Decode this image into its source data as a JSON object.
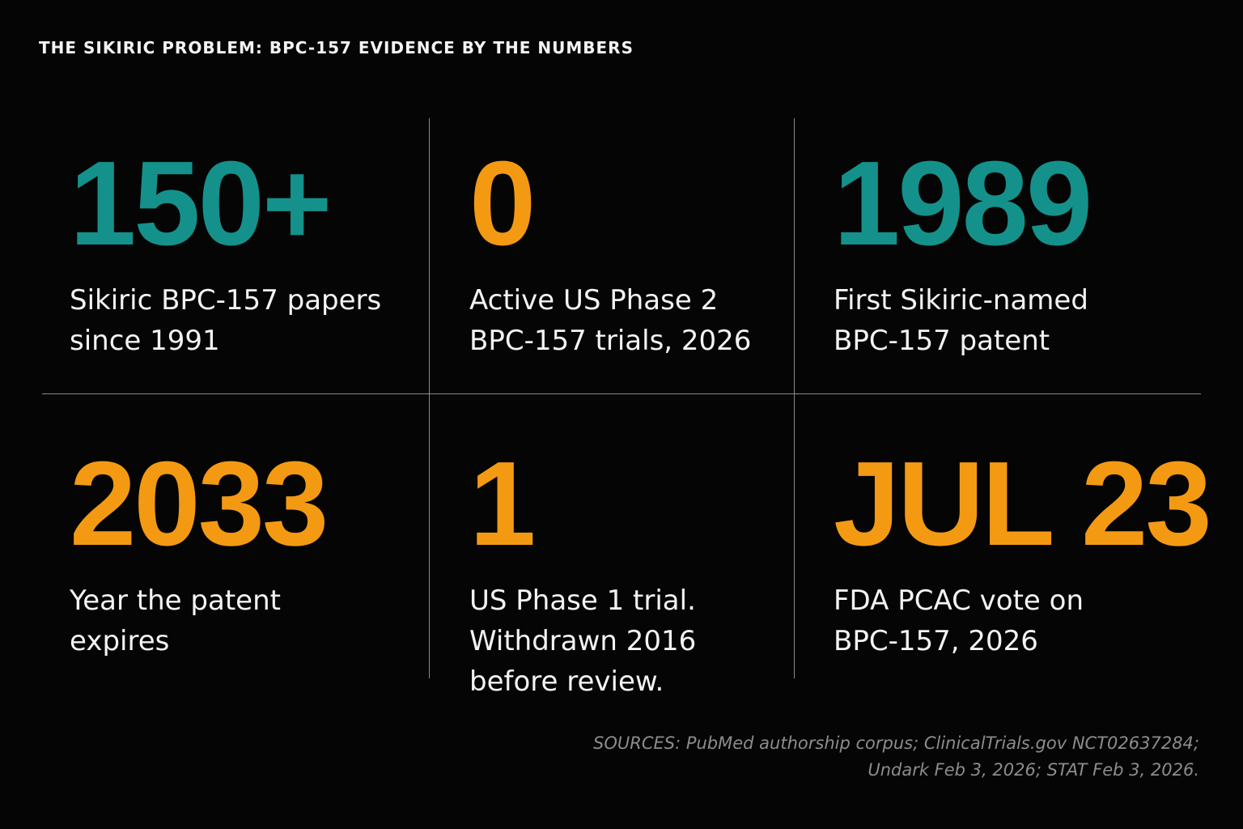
{
  "title": "THE SIKIRIC PROBLEM: BPC-157 EVIDENCE BY THE NUMBERS",
  "colors": {
    "background": "#050505",
    "teal": "#14918b",
    "orange": "#f39a12",
    "text": "#f3f3f3",
    "muted": "#8c8c8c"
  },
  "stats": [
    {
      "value": "150+",
      "color": "teal",
      "caption": "Sikiric BPC-157 papers\nsince 1991"
    },
    {
      "value": "0",
      "color": "orange",
      "caption": "Active US Phase 2\nBPC-157 trials, 2026"
    },
    {
      "value": "1989",
      "color": "teal",
      "caption": "First Sikiric-named\nBPC-157 patent"
    },
    {
      "value": "2033",
      "color": "orange",
      "caption": "Year the patent\nexpires"
    },
    {
      "value": "1",
      "color": "orange",
      "caption": "US Phase 1 trial.\nWithdrawn 2016\nbefore review."
    },
    {
      "value": "JUL 23",
      "color": "orange",
      "caption": "FDA PCAC vote on\nBPC-157, 2026"
    }
  ],
  "sources": {
    "line1": "SOURCES: PubMed authorship corpus; ClinicalTrials.gov NCT02637284;",
    "line2": "Undark Feb 3, 2026; STAT Feb 3, 2026."
  }
}
